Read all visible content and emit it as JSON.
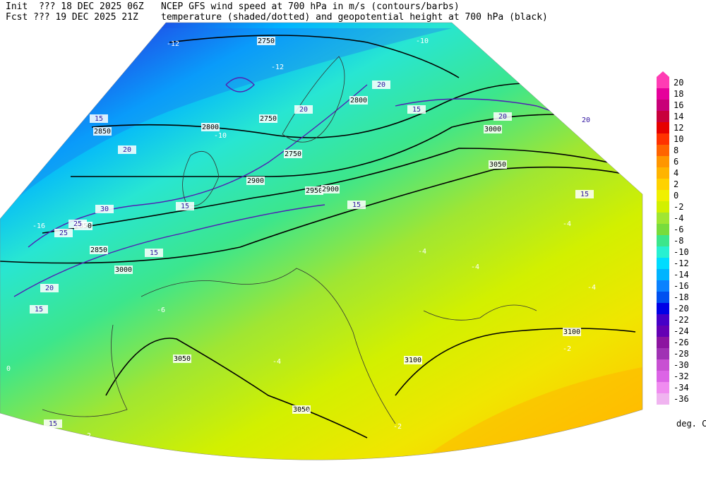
{
  "header": {
    "init": "Init  ??? 18 DEC 2025 06Z",
    "fcst": "Fcst ??? 19 DEC 2025 21Z",
    "line1": "NCEP GFS wind speed at 700 hPa in m/s (contours/barbs)",
    "line2": "temperature (shaded/dotted) and geopotential height at 700 hPa (black)"
  },
  "map": {
    "height_labels": [
      "2750",
      "2750",
      "2800",
      "2850",
      "2900",
      "2950",
      "2800",
      "2850",
      "3000",
      "3000",
      "3050",
      "3050",
      "3100",
      "3100",
      "3050",
      "2850",
      "2750",
      "2900"
    ],
    "wind_labels": [
      "15",
      "20",
      "25",
      "30",
      "20",
      "15",
      "15",
      "20",
      "15",
      "20",
      "15",
      "15",
      "25",
      "20",
      "15",
      "15",
      "20"
    ],
    "temp_labels": [
      "-12",
      "-10",
      "-12",
      "-10",
      "-4",
      "-4",
      "-4",
      "-2",
      "-2",
      "0",
      "0",
      "-4",
      "-4",
      "-6",
      "-4",
      "-2",
      "-16"
    ]
  },
  "colorbar": {
    "unit": "deg. C",
    "ticks": [
      20,
      18,
      16,
      14,
      12,
      10,
      8,
      6,
      4,
      2,
      0,
      -2,
      -4,
      -6,
      -8,
      -10,
      -12,
      -14,
      -16,
      -18,
      -20,
      -22,
      -24,
      -26,
      -28,
      -30,
      -32,
      -34,
      -36
    ],
    "colors": [
      "#ff3cb4",
      "#e6009b",
      "#c80078",
      "#c8003c",
      "#e60000",
      "#ff3200",
      "#ff6400",
      "#ff9600",
      "#ffb400",
      "#ffd200",
      "#f0f000",
      "#d2f000",
      "#a0e632",
      "#78dc3c",
      "#3ce68c",
      "#28f0d2",
      "#00dcff",
      "#00b4ff",
      "#0a82ff",
      "#0050f0",
      "#0000e6",
      "#4600c8",
      "#6400b4",
      "#8c14a0",
      "#a032b4",
      "#c850d2",
      "#dc64e6",
      "#f08cf0",
      "#f0b4f0"
    ]
  }
}
